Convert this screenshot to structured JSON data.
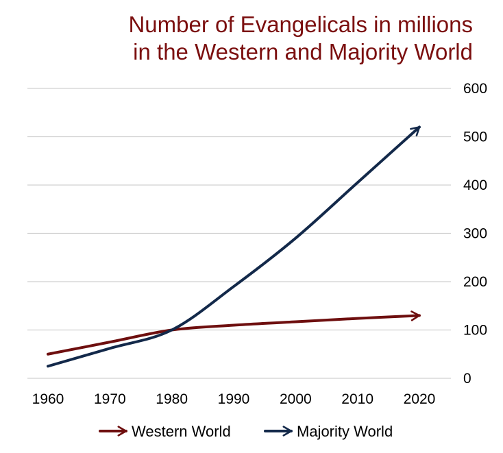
{
  "chart_data": {
    "type": "line",
    "title_lines": [
      "Number of Evangelicals in millions",
      "in the Western and Majority World"
    ],
    "x": [
      1960,
      1970,
      1980,
      1990,
      2000,
      2010,
      2020
    ],
    "x_tick_labels": [
      "1960",
      "1970",
      "1980",
      "1990",
      "2000",
      "2010",
      "2020"
    ],
    "y_tick_labels": [
      "0",
      "100",
      "200",
      "300",
      "400",
      "500",
      "600"
    ],
    "ylim": [
      0,
      600
    ],
    "y_axis_side": "right",
    "grid": true,
    "legend_position": "bottom",
    "series": [
      {
        "name": "Western World",
        "color": "#6e0f0f",
        "values": [
          50,
          75,
          100,
          110,
          117,
          124,
          130
        ]
      },
      {
        "name": "Majority World",
        "color": "#13294a",
        "values": [
          25,
          62,
          100,
          190,
          290,
          405,
          520
        ]
      }
    ]
  }
}
